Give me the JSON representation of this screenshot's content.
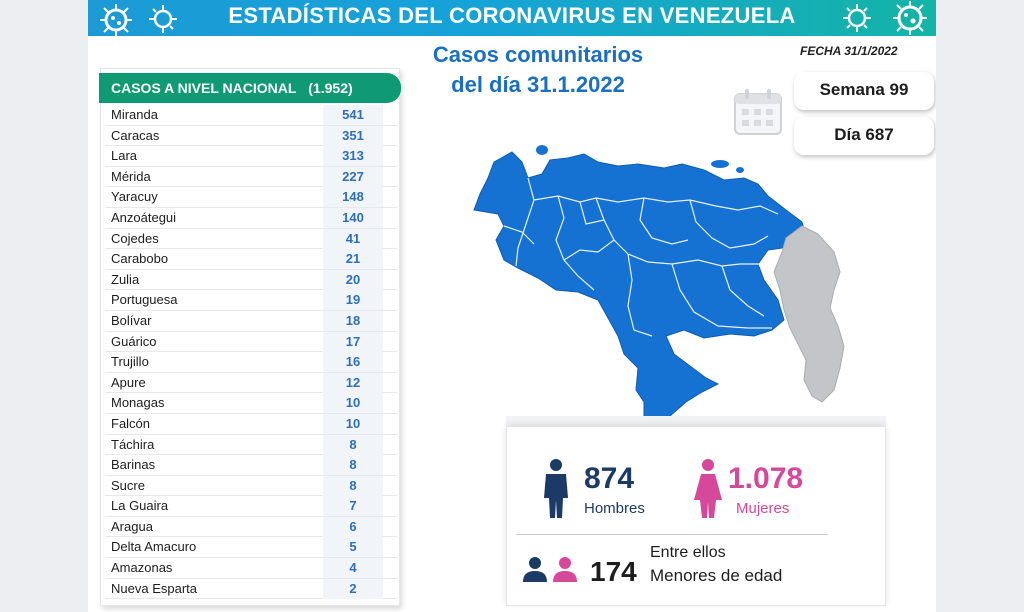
{
  "header": {
    "title": "ESTADÍSTICAS DEL CORONAVIRUS EN VENEZUELA"
  },
  "date": {
    "label": "FECHA 31/1/2022"
  },
  "subtitle": {
    "line1": "Casos comunitarios",
    "line2": "del día 31.1.2022"
  },
  "calendar": {
    "week_label": "Semana 99",
    "day_label": "Día 687",
    "icon": "calendar-icon"
  },
  "national": {
    "header_label": "CASOS A NIVEL NACIONAL",
    "header_total": "(1.952)",
    "rows": [
      {
        "state": "Miranda",
        "cases": "541"
      },
      {
        "state": "Caracas",
        "cases": "351"
      },
      {
        "state": "Lara",
        "cases": "313"
      },
      {
        "state": "Mérida",
        "cases": "227"
      },
      {
        "state": "Yaracuy",
        "cases": "148"
      },
      {
        "state": "Anzoátegui",
        "cases": "140"
      },
      {
        "state": "Cojedes",
        "cases": "41"
      },
      {
        "state": "Carabobo",
        "cases": "21"
      },
      {
        "state": "Zulia",
        "cases": "20"
      },
      {
        "state": "Portuguesa",
        "cases": "19"
      },
      {
        "state": "Bolívar",
        "cases": "18"
      },
      {
        "state": "Guárico",
        "cases": "17"
      },
      {
        "state": "Trujillo",
        "cases": "16"
      },
      {
        "state": "Apure",
        "cases": "12"
      },
      {
        "state": "Monagas",
        "cases": "10"
      },
      {
        "state": "Falcón",
        "cases": "10"
      },
      {
        "state": "Táchira",
        "cases": "8"
      },
      {
        "state": "Barinas",
        "cases": "8"
      },
      {
        "state": "Sucre",
        "cases": "8"
      },
      {
        "state": "La Guaira",
        "cases": "7"
      },
      {
        "state": "Aragua",
        "cases": "6"
      },
      {
        "state": "Delta Amacuro",
        "cases": "5"
      },
      {
        "state": "Amazonas",
        "cases": "4"
      },
      {
        "state": "Nueva Esparta",
        "cases": "2"
      }
    ]
  },
  "gender": {
    "men_count": "874",
    "men_label": "Hombres",
    "women_count": "1.078",
    "women_label": "Mujeres",
    "minors_prefix": "Entre ellos",
    "minors_count": "174",
    "minors_label": "Menores de edad"
  },
  "colors": {
    "header_blue": "#1b9ad6",
    "table_green": "#0f9a74",
    "map_blue": "#1572d2",
    "guayana_gray": "#c3c5c8",
    "men_navy": "#1b3a66",
    "women_pink": "#d6489a",
    "accent_blue": "#1a6fc0"
  }
}
